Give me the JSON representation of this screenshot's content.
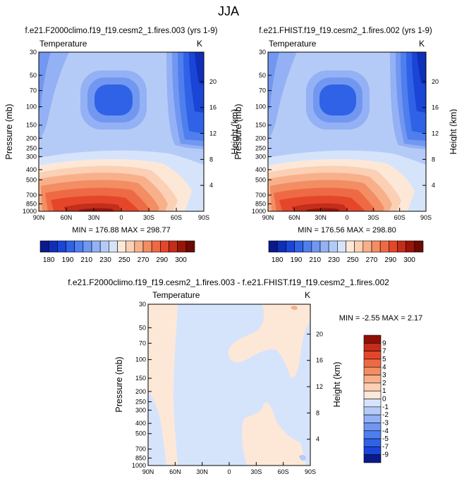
{
  "page_title": "JJA",
  "colors": {
    "blue_scale": [
      "#0a1a8c",
      "#0f2fb8",
      "#1a45d6",
      "#2f62e6",
      "#4f7fee",
      "#7197f1",
      "#93b1f4",
      "#b5cbf7",
      "#d6e4fb"
    ],
    "red_scale": [
      "#fde8d8",
      "#fbd0b4",
      "#f8b08a",
      "#f38d63",
      "#ee6a45",
      "#e5462a",
      "#c42d1a",
      "#9a1508",
      "#6b0a04"
    ]
  },
  "chart_data": [
    {
      "type": "contour",
      "title": "f.e21.F2000climo.f19_f19.cesm2_1.fires.003 (yrs 1-9)",
      "left_label": "Temperature",
      "right_label": "K",
      "ylabel": "Pressure (mb)",
      "ylabel_right": "Height (km)",
      "x_tick_labels": [
        "90N",
        "60N",
        "30N",
        "0",
        "30S",
        "60S",
        "90S"
      ],
      "x_tick_values": [
        90,
        60,
        30,
        0,
        -30,
        -60,
        -90
      ],
      "xlim": [
        90,
        -90
      ],
      "y_tick_labels": [
        "30",
        "50",
        "70",
        "100",
        "150",
        "200",
        "250",
        "300",
        "400",
        "500",
        "700",
        "850",
        "1000"
      ],
      "y_tick_values": [
        30,
        50,
        70,
        100,
        150,
        200,
        250,
        300,
        400,
        500,
        700,
        850,
        1000
      ],
      "ylim": [
        1000,
        30
      ],
      "yscale": "log",
      "right_tick_labels": [
        "4",
        "8",
        "12",
        "16",
        "20"
      ],
      "right_tick_values": [
        4,
        8,
        12,
        16,
        20
      ],
      "stats": "MIN = 176.88   MAX = 298.77",
      "min": 176.88,
      "max": 298.77
    },
    {
      "type": "contour",
      "title": "f.e21.FHIST.f19_f19.cesm2_1.fires.002 (yrs 1-9)",
      "left_label": "Temperature",
      "right_label": "K",
      "ylabel": "Pressure (mb)",
      "ylabel_right": "Height (km)",
      "x_tick_labels": [
        "90N",
        "60N",
        "30N",
        "0",
        "30S",
        "60S",
        "90S"
      ],
      "x_tick_values": [
        90,
        60,
        30,
        0,
        -30,
        -60,
        -90
      ],
      "xlim": [
        90,
        -90
      ],
      "y_tick_labels": [
        "30",
        "50",
        "70",
        "100",
        "150",
        "200",
        "250",
        "300",
        "400",
        "500",
        "700",
        "850",
        "1000"
      ],
      "y_tick_values": [
        30,
        50,
        70,
        100,
        150,
        200,
        250,
        300,
        400,
        500,
        700,
        850,
        1000
      ],
      "ylim": [
        1000,
        30
      ],
      "yscale": "log",
      "right_tick_labels": [
        "4",
        "8",
        "12",
        "16",
        "20"
      ],
      "right_tick_values": [
        4,
        8,
        12,
        16,
        20
      ],
      "stats": "MIN = 176.56   MAX = 298.80",
      "min": 176.56,
      "max": 298.8
    },
    {
      "type": "contour",
      "title": "f.e21.F2000climo.f19_f19.cesm2_1.fires.003 - f.e21.FHIST.f19_f19.cesm2_1.fires.002",
      "left_label": "Temperature",
      "right_label": "K",
      "ylabel": "Pressure (mb)",
      "ylabel_right": "Height (km)",
      "x_tick_labels": [
        "90N",
        "60N",
        "30N",
        "0",
        "30S",
        "60S",
        "90S"
      ],
      "x_tick_values": [
        90,
        60,
        30,
        0,
        -30,
        -60,
        -90
      ],
      "xlim": [
        90,
        -90
      ],
      "y_tick_labels": [
        "30",
        "50",
        "70",
        "100",
        "150",
        "200",
        "250",
        "300",
        "400",
        "500",
        "700",
        "850",
        "1000"
      ],
      "y_tick_values": [
        30,
        50,
        70,
        100,
        150,
        200,
        250,
        300,
        400,
        500,
        700,
        850,
        1000
      ],
      "ylim": [
        1000,
        30
      ],
      "yscale": "log",
      "right_tick_labels": [
        "4",
        "8",
        "12",
        "16",
        "20"
      ],
      "right_tick_values": [
        4,
        8,
        12,
        16,
        20
      ],
      "stats": "MIN =  -2.55   MAX =   2.17",
      "min": -2.55,
      "max": 2.17
    }
  ],
  "colorbar_top": {
    "orientation": "horizontal",
    "levels": [
      180,
      190,
      200,
      210,
      220,
      230,
      240,
      250,
      260,
      270,
      280,
      290,
      300
    ],
    "labels": [
      "180",
      "190",
      "210",
      "230",
      "250",
      "270",
      "290",
      "300"
    ],
    "colors": [
      "#0a1a8c",
      "#0f2fb8",
      "#1a45d6",
      "#2f62e6",
      "#4f7fee",
      "#7197f1",
      "#93b1f4",
      "#b5cbf7",
      "#d6e4fb",
      "#fde8d8",
      "#fbd0b4",
      "#f8b08a",
      "#f38d63",
      "#ee6a45",
      "#e5462a",
      "#c42d1a",
      "#9a1508",
      "#6b0a04"
    ]
  },
  "colorbar_diff": {
    "orientation": "vertical",
    "labels": [
      "9",
      "7",
      "5",
      "4",
      "3",
      "2",
      "1",
      "0",
      "-1",
      "-2",
      "-3",
      "-4",
      "-5",
      "-7",
      "-9"
    ],
    "colors": [
      "#8f0f06",
      "#c42d1a",
      "#e5462a",
      "#ee6a45",
      "#f38d63",
      "#f8b08a",
      "#fbd0b4",
      "#fde8d8",
      "#d6e4fb",
      "#b5cbf7",
      "#93b1f4",
      "#7197f1",
      "#4f7fee",
      "#2f62e6",
      "#1a45d6",
      "#0a1a8c"
    ]
  }
}
